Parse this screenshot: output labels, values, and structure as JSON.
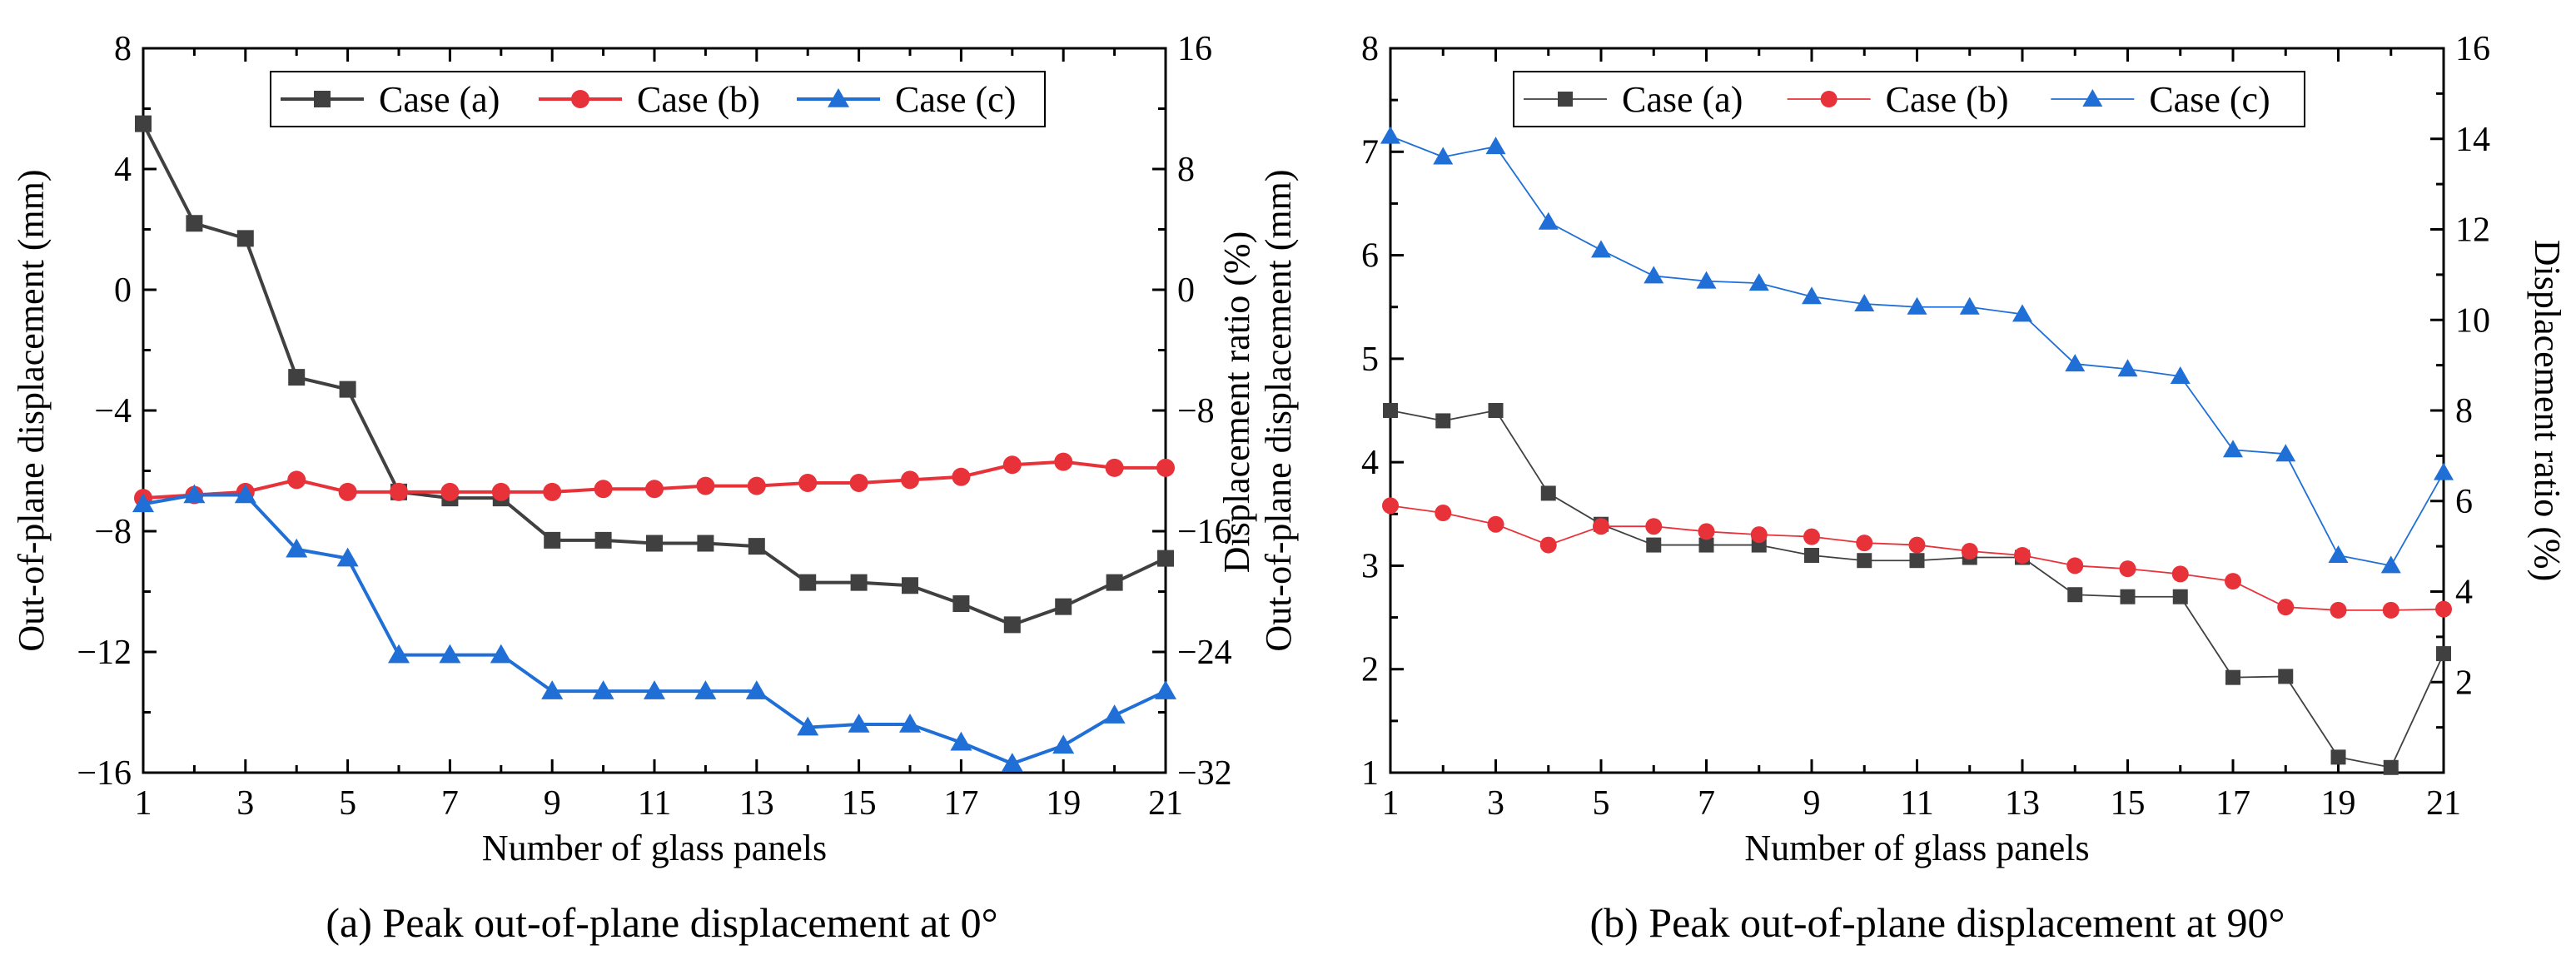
{
  "figure": {
    "captions": [
      "(a) Peak out-of-plane displacement at 0°",
      "(b) Peak out-of-plane displacement at 90°"
    ]
  },
  "chart_data": [
    {
      "type": "line",
      "title": "(a) Peak out-of-plane displacement at 0°",
      "xlabel": "Number of glass panels",
      "ylabel": "Out-of-plane displacement (mm)",
      "y2label": "",
      "x": [
        1,
        2,
        3,
        4,
        5,
        6,
        7,
        8,
        9,
        10,
        11,
        12,
        13,
        14,
        15,
        16,
        17,
        18,
        19,
        20,
        21
      ],
      "xlim": [
        1,
        21
      ],
      "xticks": [
        1,
        3,
        5,
        7,
        9,
        11,
        13,
        15,
        17,
        19,
        21
      ],
      "ylim": [
        -16,
        8
      ],
      "yticks": [
        -16,
        -12,
        -8,
        -4,
        0,
        4,
        8
      ],
      "y2lim": [
        -32,
        16
      ],
      "y2ticks": [
        -32,
        -24,
        -16,
        -8,
        0,
        8,
        16
      ],
      "legend_position": "top-center",
      "series": [
        {
          "name": "Case (a)",
          "axis": "left",
          "marker": "square",
          "color": "#404040",
          "values": [
            5.5,
            2.2,
            1.7,
            -2.9,
            -3.3,
            -6.7,
            -6.9,
            -6.9,
            -8.3,
            -8.3,
            -8.4,
            -8.4,
            -8.5,
            -9.7,
            -9.7,
            -9.8,
            -10.4,
            -11.1,
            -10.5,
            -9.7,
            -8.9
          ]
        },
        {
          "name": "Case (b)",
          "axis": "left",
          "marker": "circle",
          "color": "#e8323a",
          "values": [
            -6.9,
            -6.8,
            -6.7,
            -6.3,
            -6.7,
            -6.7,
            -6.7,
            -6.7,
            -6.7,
            -6.6,
            -6.6,
            -6.5,
            -6.5,
            -6.4,
            -6.4,
            -6.3,
            -6.2,
            -5.8,
            -5.7,
            -5.9,
            -5.9
          ]
        },
        {
          "name": "Case (c)",
          "axis": "left",
          "marker": "triangle",
          "color": "#1f6fd6",
          "values": [
            -7.1,
            -6.8,
            -6.8,
            -8.6,
            -8.9,
            -12.1,
            -12.1,
            -12.1,
            -13.3,
            -13.3,
            -13.3,
            -13.3,
            -13.3,
            -14.5,
            -14.4,
            -14.4,
            -15.0,
            -15.7,
            -15.1,
            -14.1,
            -13.3
          ]
        }
      ]
    },
    {
      "type": "line",
      "title": "(b) Peak out-of-plane displacement at 90°",
      "xlabel": "Number of glass panels",
      "ylabel": "Out-of-plane displacement (mm)",
      "ylabel_outer": "Displacement ratio (%)",
      "y2label": "Displacement ratio (%)",
      "x": [
        1,
        2,
        3,
        4,
        5,
        6,
        7,
        8,
        9,
        10,
        11,
        12,
        13,
        14,
        15,
        16,
        17,
        18,
        19,
        20,
        21
      ],
      "xlim": [
        1,
        21
      ],
      "xticks": [
        1,
        3,
        5,
        7,
        9,
        11,
        13,
        15,
        17,
        19,
        21
      ],
      "ylim": [
        1,
        8
      ],
      "yticks": [
        1,
        2,
        3,
        4,
        5,
        6,
        7,
        8
      ],
      "y2lim": [
        0,
        16
      ],
      "y2ticks": [
        2,
        4,
        6,
        8,
        10,
        12,
        14,
        16
      ],
      "legend_position": "top-right",
      "series": [
        {
          "name": "Case (a)",
          "axis": "left",
          "marker": "square",
          "color": "#404040",
          "values": [
            4.5,
            4.4,
            4.5,
            3.7,
            3.4,
            3.2,
            3.2,
            3.2,
            3.1,
            3.05,
            3.05,
            3.08,
            3.08,
            2.72,
            2.7,
            2.7,
            1.92,
            1.93,
            1.15,
            1.05,
            2.15
          ]
        },
        {
          "name": "Case (b)",
          "axis": "left",
          "marker": "circle",
          "color": "#e8323a",
          "values": [
            3.58,
            3.51,
            3.4,
            3.2,
            3.38,
            3.38,
            3.33,
            3.3,
            3.28,
            3.22,
            3.2,
            3.14,
            3.1,
            3.0,
            2.97,
            2.92,
            2.85,
            2.6,
            2.57,
            2.57,
            2.58
          ]
        },
        {
          "name": "Case (c)",
          "axis": "left",
          "marker": "triangle",
          "color": "#1f6fd6",
          "values": [
            7.15,
            6.95,
            7.05,
            6.32,
            6.05,
            5.8,
            5.75,
            5.73,
            5.6,
            5.53,
            5.5,
            5.5,
            5.43,
            4.95,
            4.9,
            4.83,
            4.12,
            4.08,
            3.1,
            3.0,
            3.9
          ]
        }
      ]
    }
  ]
}
